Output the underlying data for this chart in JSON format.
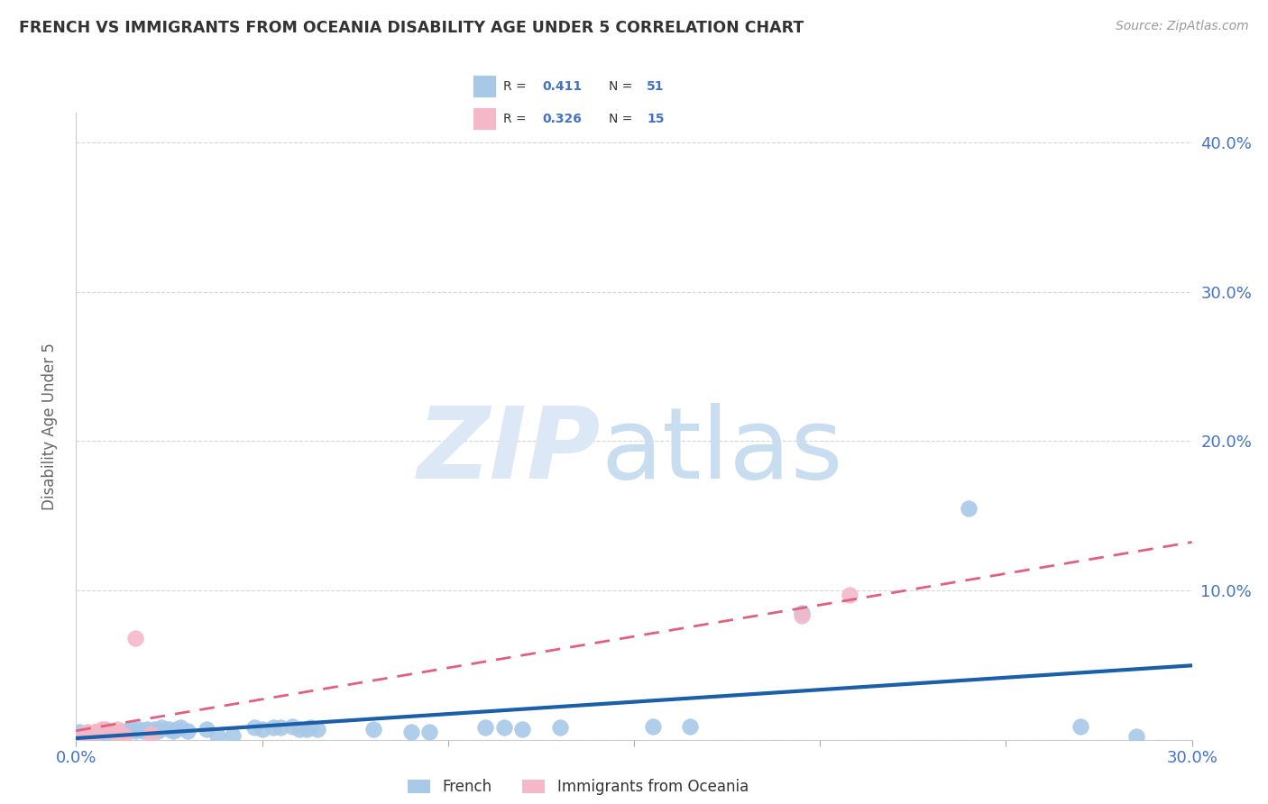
{
  "title": "FRENCH VS IMMIGRANTS FROM OCEANIA DISABILITY AGE UNDER 5 CORRELATION CHART",
  "source": "Source: ZipAtlas.com",
  "ylabel": "Disability Age Under 5",
  "xlim": [
    0.0,
    0.3
  ],
  "ylim": [
    0.0,
    0.42
  ],
  "xticks": [
    0.0,
    0.05,
    0.1,
    0.15,
    0.2,
    0.25,
    0.3
  ],
  "xtick_labels": [
    "0.0%",
    "",
    "",
    "",
    "",
    "",
    "30.0%"
  ],
  "yticks": [
    0.0,
    0.1,
    0.2,
    0.3,
    0.4
  ],
  "ytick_labels": [
    "",
    "10.0%",
    "20.0%",
    "30.0%",
    "40.0%"
  ],
  "french_R": "0.411",
  "french_N": "51",
  "oceania_R": "0.326",
  "oceania_N": "15",
  "french_color": "#a8c8e8",
  "french_line_color": "#1a5fa8",
  "oceania_color": "#f4b8c8",
  "oceania_line_color": "#e06080",
  "french_points": [
    [
      0.001,
      0.005
    ],
    [
      0.002,
      0.003
    ],
    [
      0.003,
      0.004
    ],
    [
      0.004,
      0.003
    ],
    [
      0.005,
      0.005
    ],
    [
      0.006,
      0.004
    ],
    [
      0.007,
      0.005
    ],
    [
      0.008,
      0.004
    ],
    [
      0.009,
      0.005
    ],
    [
      0.01,
      0.006
    ],
    [
      0.012,
      0.005
    ],
    [
      0.013,
      0.006
    ],
    [
      0.015,
      0.007
    ],
    [
      0.016,
      0.006
    ],
    [
      0.017,
      0.007
    ],
    [
      0.018,
      0.006
    ],
    [
      0.019,
      0.007
    ],
    [
      0.02,
      0.006
    ],
    [
      0.021,
      0.007
    ],
    [
      0.022,
      0.006
    ],
    [
      0.023,
      0.008
    ],
    [
      0.025,
      0.007
    ],
    [
      0.026,
      0.006
    ],
    [
      0.027,
      0.007
    ],
    [
      0.028,
      0.008
    ],
    [
      0.03,
      0.006
    ],
    [
      0.035,
      0.007
    ],
    [
      0.038,
      0.003
    ],
    [
      0.042,
      0.003
    ],
    [
      0.048,
      0.008
    ],
    [
      0.05,
      0.007
    ],
    [
      0.053,
      0.008
    ],
    [
      0.055,
      0.008
    ],
    [
      0.058,
      0.009
    ],
    [
      0.06,
      0.007
    ],
    [
      0.062,
      0.007
    ],
    [
      0.063,
      0.008
    ],
    [
      0.065,
      0.007
    ],
    [
      0.08,
      0.007
    ],
    [
      0.09,
      0.005
    ],
    [
      0.095,
      0.005
    ],
    [
      0.11,
      0.008
    ],
    [
      0.115,
      0.008
    ],
    [
      0.12,
      0.007
    ],
    [
      0.13,
      0.008
    ],
    [
      0.155,
      0.009
    ],
    [
      0.165,
      0.009
    ],
    [
      0.195,
      0.085
    ],
    [
      0.24,
      0.155
    ],
    [
      0.27,
      0.009
    ],
    [
      0.285,
      0.002
    ]
  ],
  "oceania_points": [
    [
      0.002,
      0.004
    ],
    [
      0.003,
      0.005
    ],
    [
      0.005,
      0.005
    ],
    [
      0.006,
      0.005
    ],
    [
      0.007,
      0.007
    ],
    [
      0.008,
      0.007
    ],
    [
      0.009,
      0.006
    ],
    [
      0.01,
      0.006
    ],
    [
      0.011,
      0.007
    ],
    [
      0.012,
      0.004
    ],
    [
      0.013,
      0.003
    ],
    [
      0.016,
      0.068
    ],
    [
      0.02,
      0.004
    ],
    [
      0.195,
      0.083
    ],
    [
      0.208,
      0.097
    ]
  ],
  "grid_color": "#cccccc",
  "background_color": "#ffffff"
}
